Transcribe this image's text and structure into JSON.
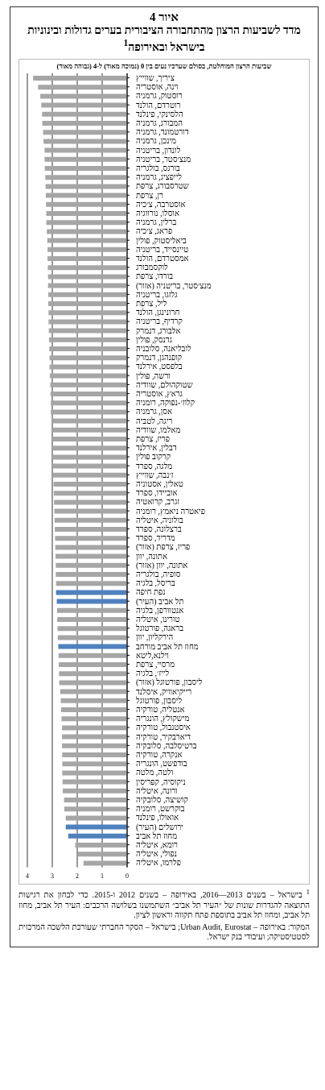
{
  "chart_data": {
    "type": "bar",
    "orientation": "horizontal",
    "title": "איור 4",
    "subtitle": "מדד לשביעות הרצון מהתחבורה הציבורית בערים גדולות ובינוניות בישראל ובאירופה$^{1}$",
    "xlabel": "שביעות הרצון המוחלטת, בסולם שערכיו נעים בין 0 (נמוכה מאוד) ל-4 (גבוהה מאוד)",
    "categories": [
      "ציריך, שווייץ",
      "וינה, אוסטריה",
      "רוסטוק, גרמניה",
      "רוטרדם, הולנד",
      "הלסינקי, פינלנד",
      "המבורג, גרמניה",
      "דורטמונד, גרמניה",
      "מינכן, גרמניה",
      "לונדון, בריטניה",
      "מנצ׳סטר, בריטניה",
      "בורגס, בולגריה",
      "לייפציג, גרמניה",
      "שטרסבורג, צרפת",
      "רן, צרפת",
      "אוסטרבה, צ׳כיה",
      "אוסלו, נורווגיה",
      "ברלין, גרמניה",
      "פראג, צ׳כיה",
      "ביאליסטוק, פולין",
      "טיינסייד, בריטניה",
      "אמסטרדם, הולנד",
      "לוקסמבורג",
      "בורדו, צרפת",
      "מנצ׳סטר, בריטניה (אזור)",
      "גלזגו, בריטניה",
      "ליל, צרפת",
      "חרונינגן, הולנד",
      "קרדיף, בריטניה",
      "אלבורג, דנמרק",
      "גדנסק, פולין",
      "לובליאנה, סלובניה",
      "קופנהגן, דנמרק",
      "בלפסט, אירלנד",
      "ורשה, פולין",
      "שטוקהולם, שוודיה",
      "גראץ, אוסטריה",
      "קלוז׳-נפוקה, רומניה",
      "אסן, גרמניה",
      "ריגה, לטביה",
      "מאלמו, שוודיה",
      "פריז, צרפת",
      "דבלין, אירלנד",
      "קרקוב פולין",
      "מלגה, ספרד",
      "ז׳נבה, שווייץ",
      "טאלין, אסטוניה",
      "אוביידו, ספרד",
      "זגרב, קרואטיה",
      "פיאטרה ניאמץ, רומניה",
      "בולוניה, איטליה",
      "ברצלונה, ספרד",
      "מדריד, ספרד",
      "פריז, צרפת (אזור)",
      "אתונה, יוון",
      "אתונה, יוון (אזור)",
      "סופיה, בולגריה",
      "בריסל, בלגיה",
      "נפת חיפה",
      "תל אביב (העיר)",
      "אנטוורפן, בלגיה",
      "טורינו, איטליה",
      "בראגה, פורטוגל",
      "הירקליון, יוון",
      "מחוז תל אביב מורחב",
      "וילנא,ליטא",
      "מרסיי, צרפת",
      "לייז׳, בלגיה",
      "ליסבון, פורטוגל (אזור)",
      "רייקיאוויק, איסלנד",
      "ליסבון, פורטוגל",
      "אנטליה, טורקיה",
      "מישקולץ, הונגריה",
      "איסטנבול, טורקיה",
      "דיארבקיר, טורקיה",
      "ברטיסלבה, סלובקיה",
      "אנקרה, טורקיה",
      "בודפשט, הונגריה",
      "ולטה, מלטה",
      "ניקוסיה, קפריסין",
      "ורונה, איטליה",
      "קושיצה, סלובקיה",
      "בוקרשט, רומניה",
      "אואולו, פינלנד",
      "ירושלים (העיר)",
      "מחוז תל אביב",
      "רומא, איטליה",
      "נפולי, איטליה",
      "פלרמו, איטליה"
    ],
    "values": [
      3.77,
      3.57,
      3.48,
      3.44,
      3.41,
      3.4,
      3.37,
      3.35,
      3.31,
      3.31,
      3.3,
      3.28,
      3.27,
      3.26,
      3.25,
      3.24,
      3.24,
      3.22,
      3.2,
      3.19,
      3.19,
      3.18,
      3.17,
      3.17,
      3.16,
      3.16,
      3.15,
      3.15,
      3.14,
      3.13,
      3.12,
      3.11,
      3.11,
      3.1,
      3.08,
      3.07,
      3.06,
      3.06,
      3.02,
      3.01,
      3.0,
      3.0,
      3.0,
      2.99,
      2.98,
      2.95,
      2.94,
      2.93,
      2.92,
      2.91,
      2.9,
      2.89,
      2.88,
      2.87,
      2.86,
      2.86,
      2.85,
      2.85,
      2.82,
      2.81,
      2.8,
      2.79,
      2.78,
      2.76,
      2.75,
      2.74,
      2.73,
      2.72,
      2.68,
      2.66,
      2.65,
      2.63,
      2.61,
      2.61,
      2.61,
      2.6,
      2.6,
      2.6,
      2.59,
      2.58,
      2.53,
      2.52,
      2.46,
      2.46,
      2.36,
      2.08,
      1.97,
      1.75
    ],
    "colors": [
      "#a6a6a6",
      "#a6a6a6",
      "#a6a6a6",
      "#a6a6a6",
      "#a6a6a6",
      "#a6a6a6",
      "#a6a6a6",
      "#a6a6a6",
      "#a6a6a6",
      "#a6a6a6",
      "#a6a6a6",
      "#a6a6a6",
      "#a6a6a6",
      "#a6a6a6",
      "#a6a6a6",
      "#a6a6a6",
      "#a6a6a6",
      "#a6a6a6",
      "#a6a6a6",
      "#a6a6a6",
      "#a6a6a6",
      "#a6a6a6",
      "#a6a6a6",
      "#a6a6a6",
      "#a6a6a6",
      "#a6a6a6",
      "#a6a6a6",
      "#a6a6a6",
      "#a6a6a6",
      "#a6a6a6",
      "#a6a6a6",
      "#a6a6a6",
      "#a6a6a6",
      "#a6a6a6",
      "#a6a6a6",
      "#a6a6a6",
      "#a6a6a6",
      "#a6a6a6",
      "#a6a6a6",
      "#a6a6a6",
      "#a6a6a6",
      "#a6a6a6",
      "#a6a6a6",
      "#a6a6a6",
      "#a6a6a6",
      "#a6a6a6",
      "#a6a6a6",
      "#a6a6a6",
      "#a6a6a6",
      "#a6a6a6",
      "#a6a6a6",
      "#a6a6a6",
      "#a6a6a6",
      "#a6a6a6",
      "#a6a6a6",
      "#a6a6a6",
      "#a6a6a6",
      "#4f81bd",
      "#4f81bd",
      "#a6a6a6",
      "#a6a6a6",
      "#a6a6a6",
      "#a6a6a6",
      "#4f81bd",
      "#a6a6a6",
      "#a6a6a6",
      "#a6a6a6",
      "#a6a6a6",
      "#a6a6a6",
      "#a6a6a6",
      "#a6a6a6",
      "#a6a6a6",
      "#a6a6a6",
      "#a6a6a6",
      "#a6a6a6",
      "#a6a6a6",
      "#a6a6a6",
      "#a6a6a6",
      "#a6a6a6",
      "#a6a6a6",
      "#a6a6a6",
      "#a6a6a6",
      "#a6a6a6",
      "#4f81bd",
      "#4f81bd",
      "#a6a6a6",
      "#a6a6a6",
      "#a6a6a6"
    ],
    "xlim": [
      4,
      0
    ],
    "xticks": [
      4,
      3,
      2,
      1,
      0
    ],
    "grid": "x",
    "legend": false,
    "annotations": [
      "$^{1}$ בישראל – בשנים 2013—2016, באירופה – בשנים 2012 ו-2015. כדי לבחון את רגישות התוצאה להגדרות שונות של ״העיר תל אביב״ השתמשנו בשלושה הרכבים: העיר תל אביב, מחוז תל אביב, ומחוז תל אביב בתוספת פתח תקווה וראשון לציון.",
      "המקור: באירופה – Urban Audit, Eurostat; בישראל – הסקר החברתי שעורכת הלשכה המרכזית לסטטיסטיקה; ועיבודי בנק ישראל."
    ]
  }
}
